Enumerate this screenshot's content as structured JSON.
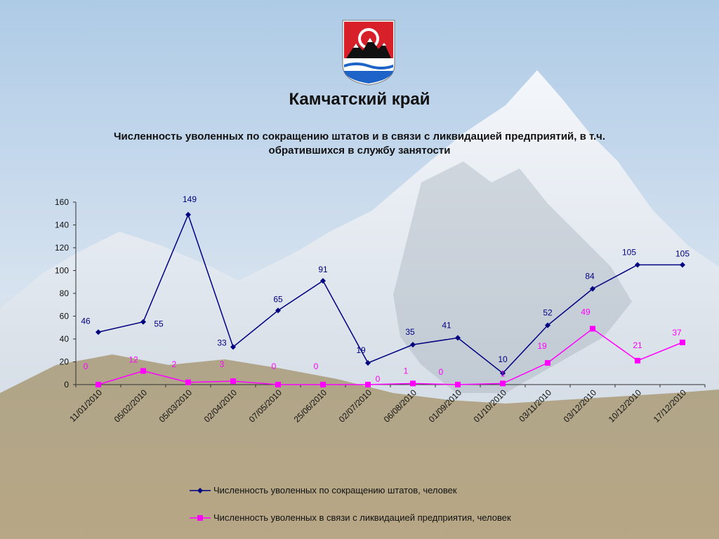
{
  "header": {
    "title": "Камчатский край",
    "subtitle": "Численность уволенных по сокращению штатов и в связи с ликвидацией предприятий, в т.ч. обратившихся в службу занятости",
    "logo_icon": "kamchatka-coat-of-arms-icon"
  },
  "colors": {
    "series1": "#000080",
    "series2": "#ff00ff"
  },
  "chart_data": {
    "type": "line",
    "categories": [
      "11/01/2010",
      "05/02/2010",
      "05/03/2010",
      "02/04/2010",
      "07/05/2010",
      "25/06/2010",
      "02/07/2010",
      "06/08/2010",
      "01/09/2010",
      "01/10/2010",
      "03/11/2010",
      "03/12/2010",
      "10/12/2010",
      "17/12/2010"
    ],
    "y_ticks": [
      "0",
      "20",
      "40",
      "60",
      "80",
      "100",
      "120",
      "140",
      "160"
    ],
    "ylim": [
      0,
      160
    ],
    "grid": false,
    "legend_position": "bottom",
    "series": [
      {
        "name": "Численность уволенных по сокращению штатов, человек",
        "color": "#000080",
        "marker": "diamond",
        "values": [
          46,
          55,
          149,
          33,
          65,
          91,
          19,
          35,
          41,
          10,
          52,
          84,
          105,
          105
        ]
      },
      {
        "name": "Численность уволенных в связи с ликвидацией предприятия, человек",
        "color": "#ff00ff",
        "marker": "square",
        "values": [
          0,
          12,
          2,
          3,
          0,
          0,
          0,
          1,
          0,
          1,
          19,
          49,
          21,
          37
        ]
      }
    ]
  }
}
